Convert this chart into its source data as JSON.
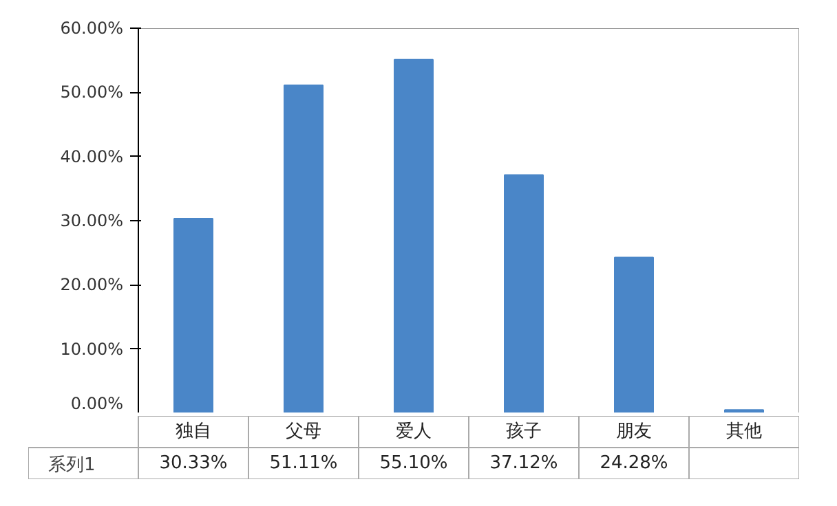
{
  "chart_data": {
    "type": "bar",
    "categories": [
      "独自",
      "父母",
      "爱人",
      "孩子",
      "朋友",
      "其他"
    ],
    "series": [
      {
        "name": "系列1",
        "color": "#4a86c8",
        "values": [
          30.33,
          51.11,
          55.1,
          37.12,
          24.28,
          0.5
        ],
        "value_labels": [
          "30.33%",
          "51.11%",
          "55.10%",
          "37.12%",
          "24.28%",
          null
        ]
      }
    ],
    "ylim": [
      0,
      60
    ],
    "yticks": [
      {
        "value": 0,
        "label": "0.00%"
      },
      {
        "value": 10,
        "label": "10.00%"
      },
      {
        "value": 20,
        "label": "20.00%"
      },
      {
        "value": 30,
        "label": "30.00%"
      },
      {
        "value": 40,
        "label": "40.00%"
      },
      {
        "value": 50,
        "label": "50.00%"
      },
      {
        "value": 60,
        "label": "60.00%"
      }
    ],
    "grid": false,
    "legend": "bottom"
  }
}
